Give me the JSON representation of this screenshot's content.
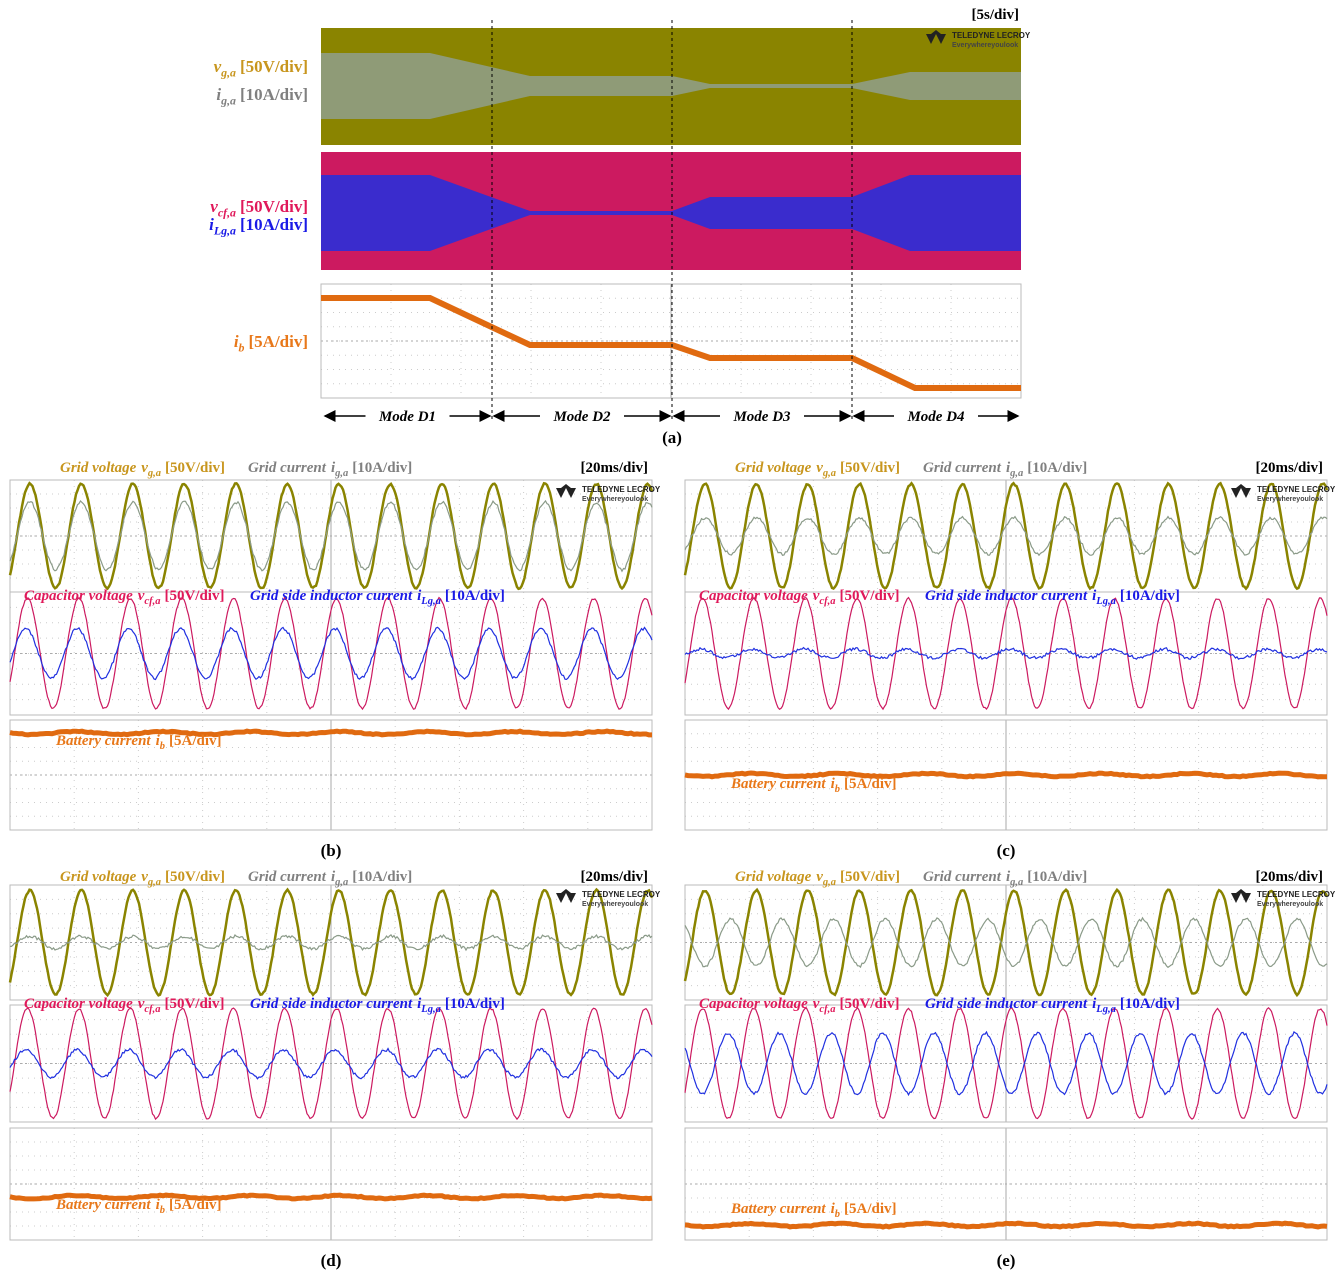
{
  "panel_a": {
    "timebase": "[5s/div]",
    "logo": {
      "brand": "TELEDYNE LECROY",
      "tagline": "Everywhereyoulook"
    },
    "labels": [
      {
        "symbol": "v",
        "subscript": "g,a",
        "scale": "[50V/div]"
      },
      {
        "symbol": "i",
        "subscript": "g,a",
        "scale": "[10A/div]"
      },
      {
        "symbol": "v",
        "subscript": "cf,a",
        "scale": "[50V/div]"
      },
      {
        "symbol": "i",
        "subscript": "Lg,a",
        "scale": "[10A/div]"
      },
      {
        "symbol": "i",
        "subscript": "b",
        "scale": "[5A/div]"
      }
    ],
    "modes": [
      "Mode D1",
      "Mode D2",
      "Mode D3",
      "Mode D4"
    ],
    "caption": "(a)"
  },
  "panels": [
    {
      "timebase": "[20ms/div]",
      "logo": {
        "brand": "TELEDYNE LECROY",
        "tagline": "Everywhereyoulook"
      },
      "labels": [
        {
          "prefix": "Grid voltage",
          "symbol": "v",
          "subscript": "g,a",
          "scale": "[50V/div]"
        },
        {
          "prefix": "Grid current",
          "symbol": "i",
          "subscript": "g,a",
          "scale": "[10A/div]"
        },
        {
          "prefix": "Capacitor voltage",
          "symbol": "v",
          "subscript": "cf,a",
          "scale": "[50V/div]"
        },
        {
          "prefix": "Grid side inductor current",
          "symbol": "i",
          "subscript": "Lg,a",
          "scale": "[10A/div]"
        },
        {
          "prefix": "Battery current",
          "symbol": "i",
          "subscript": "b",
          "scale": "[5A/div]"
        }
      ],
      "caption": "(b)"
    },
    {
      "timebase": "[20ms/div]",
      "logo": {
        "brand": "TELEDYNE LECROY",
        "tagline": "Everywhereyoulook"
      },
      "labels": [
        {
          "prefix": "Grid voltage",
          "symbol": "v",
          "subscript": "g,a",
          "scale": "[50V/div]"
        },
        {
          "prefix": "Grid current",
          "symbol": "i",
          "subscript": "g,a",
          "scale": "[10A/div]"
        },
        {
          "prefix": "Capacitor voltage",
          "symbol": "v",
          "subscript": "cf,a",
          "scale": "[50V/div]"
        },
        {
          "prefix": "Grid side inductor current",
          "symbol": "i",
          "subscript": "Lg,a",
          "scale": "[10A/div]"
        },
        {
          "prefix": "Battery current",
          "symbol": "i",
          "subscript": "b",
          "scale": "[5A/div]"
        }
      ],
      "caption": "(c)"
    },
    {
      "timebase": "[20ms/div]",
      "logo": {
        "brand": "TELEDYNE LECROY",
        "tagline": "Everywhereyoulook"
      },
      "labels": [
        {
          "prefix": "Grid voltage",
          "symbol": "v",
          "subscript": "g,a",
          "scale": "[50V/div]"
        },
        {
          "prefix": "Grid current",
          "symbol": "i",
          "subscript": "g,a",
          "scale": "[10A/div]"
        },
        {
          "prefix": "Capacitor voltage",
          "symbol": "v",
          "subscript": "cf,a",
          "scale": "[50V/div]"
        },
        {
          "prefix": "Grid side inductor current",
          "symbol": "i",
          "subscript": "Lg,a",
          "scale": "[10A/div]"
        },
        {
          "prefix": "Battery current",
          "symbol": "i",
          "subscript": "b",
          "scale": "[5A/div]"
        }
      ],
      "caption": "(d)"
    },
    {
      "timebase": "[20ms/div]",
      "logo": {
        "brand": "TELEDYNE LECROY",
        "tagline": "Everywhereyoulook"
      },
      "labels": [
        {
          "prefix": "Grid voltage",
          "symbol": "v",
          "subscript": "g,a",
          "scale": "[50V/div]"
        },
        {
          "prefix": "Grid current",
          "symbol": "i",
          "subscript": "g,a",
          "scale": "[10A/div]"
        },
        {
          "prefix": "Capacitor voltage",
          "symbol": "v",
          "subscript": "cf,a",
          "scale": "[50V/div]"
        },
        {
          "prefix": "Grid side inductor current",
          "symbol": "i",
          "subscript": "Lg,a",
          "scale": "[10A/div]"
        },
        {
          "prefix": "Battery current",
          "symbol": "i",
          "subscript": "b",
          "scale": "[5A/div]"
        }
      ],
      "caption": "(e)"
    }
  ]
}
